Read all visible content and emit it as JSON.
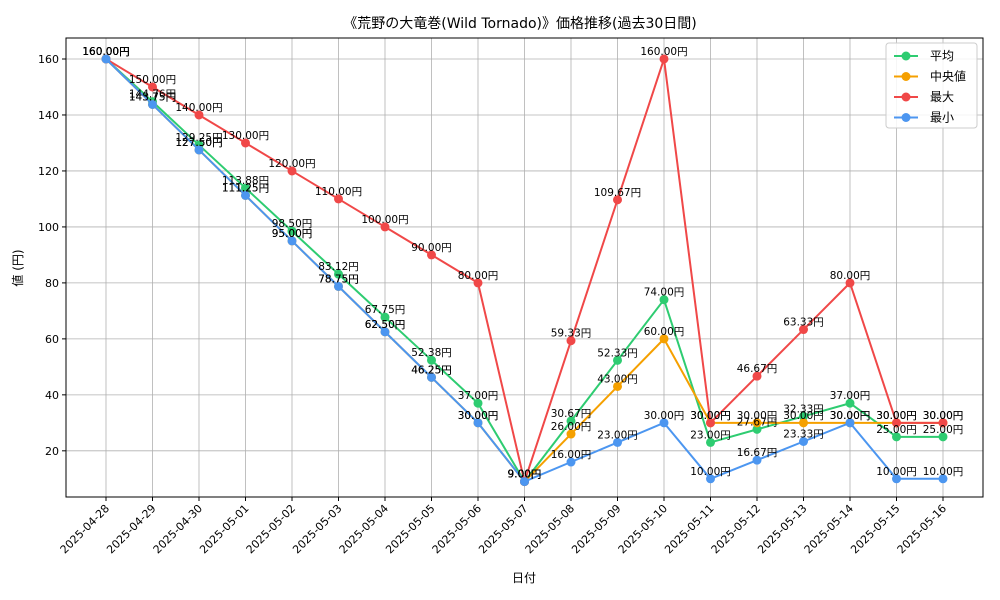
{
  "chart_data": {
    "type": "line",
    "title": "《荒野の大竜巻(Wild Tornado)》価格推移(過去30日間)",
    "xlabel": "日付",
    "ylabel": "値 (円)",
    "ylim": [
      3.5,
      167.5
    ],
    "yticks": [
      20,
      40,
      60,
      80,
      100,
      120,
      140,
      160
    ],
    "grid": true,
    "legend_position": "top-right",
    "label_suffix": "円",
    "categories": [
      "2025-04-28",
      "2025-04-29",
      "2025-04-30",
      "2025-05-01",
      "2025-05-02",
      "2025-05-03",
      "2025-05-04",
      "2025-05-05",
      "2025-05-06",
      "2025-05-07",
      "2025-05-08",
      "2025-05-09",
      "2025-05-10",
      "2025-05-11",
      "2025-05-12",
      "2025-05-13",
      "2025-05-14",
      "2025-05-15",
      "2025-05-16"
    ],
    "series": [
      {
        "name": "平均",
        "color": "#2ecc71",
        "values": [
          160.0,
          144.76,
          129.25,
          113.88,
          98.5,
          83.12,
          67.75,
          52.38,
          37.0,
          9.0,
          30.67,
          52.33,
          74.0,
          23.0,
          27.67,
          32.33,
          37.0,
          25.0,
          25.0
        ]
      },
      {
        "name": "中央値",
        "color": "#f5a000",
        "values": [
          160.0,
          143.75,
          127.5,
          111.25,
          95.0,
          78.75,
          62.5,
          46.25,
          30.0,
          9.0,
          26.0,
          43.0,
          60.0,
          30.0,
          30.0,
          30.0,
          30.0,
          30.0,
          30.0
        ]
      },
      {
        "name": "最大",
        "color": "#f04848",
        "values": [
          160.0,
          150.0,
          140.0,
          130.0,
          120.0,
          110.0,
          100.0,
          90.0,
          80.0,
          9.0,
          59.33,
          109.67,
          160.0,
          30.0,
          46.67,
          63.33,
          80.0,
          30.0,
          30.0
        ]
      },
      {
        "name": "最小",
        "color": "#4c96f0",
        "values": [
          160.0,
          143.75,
          127.5,
          111.25,
          95.0,
          78.75,
          62.5,
          46.25,
          30.0,
          9.0,
          16.0,
          23.0,
          30.0,
          10.0,
          16.67,
          23.33,
          30.0,
          10.0,
          10.0
        ]
      }
    ]
  }
}
